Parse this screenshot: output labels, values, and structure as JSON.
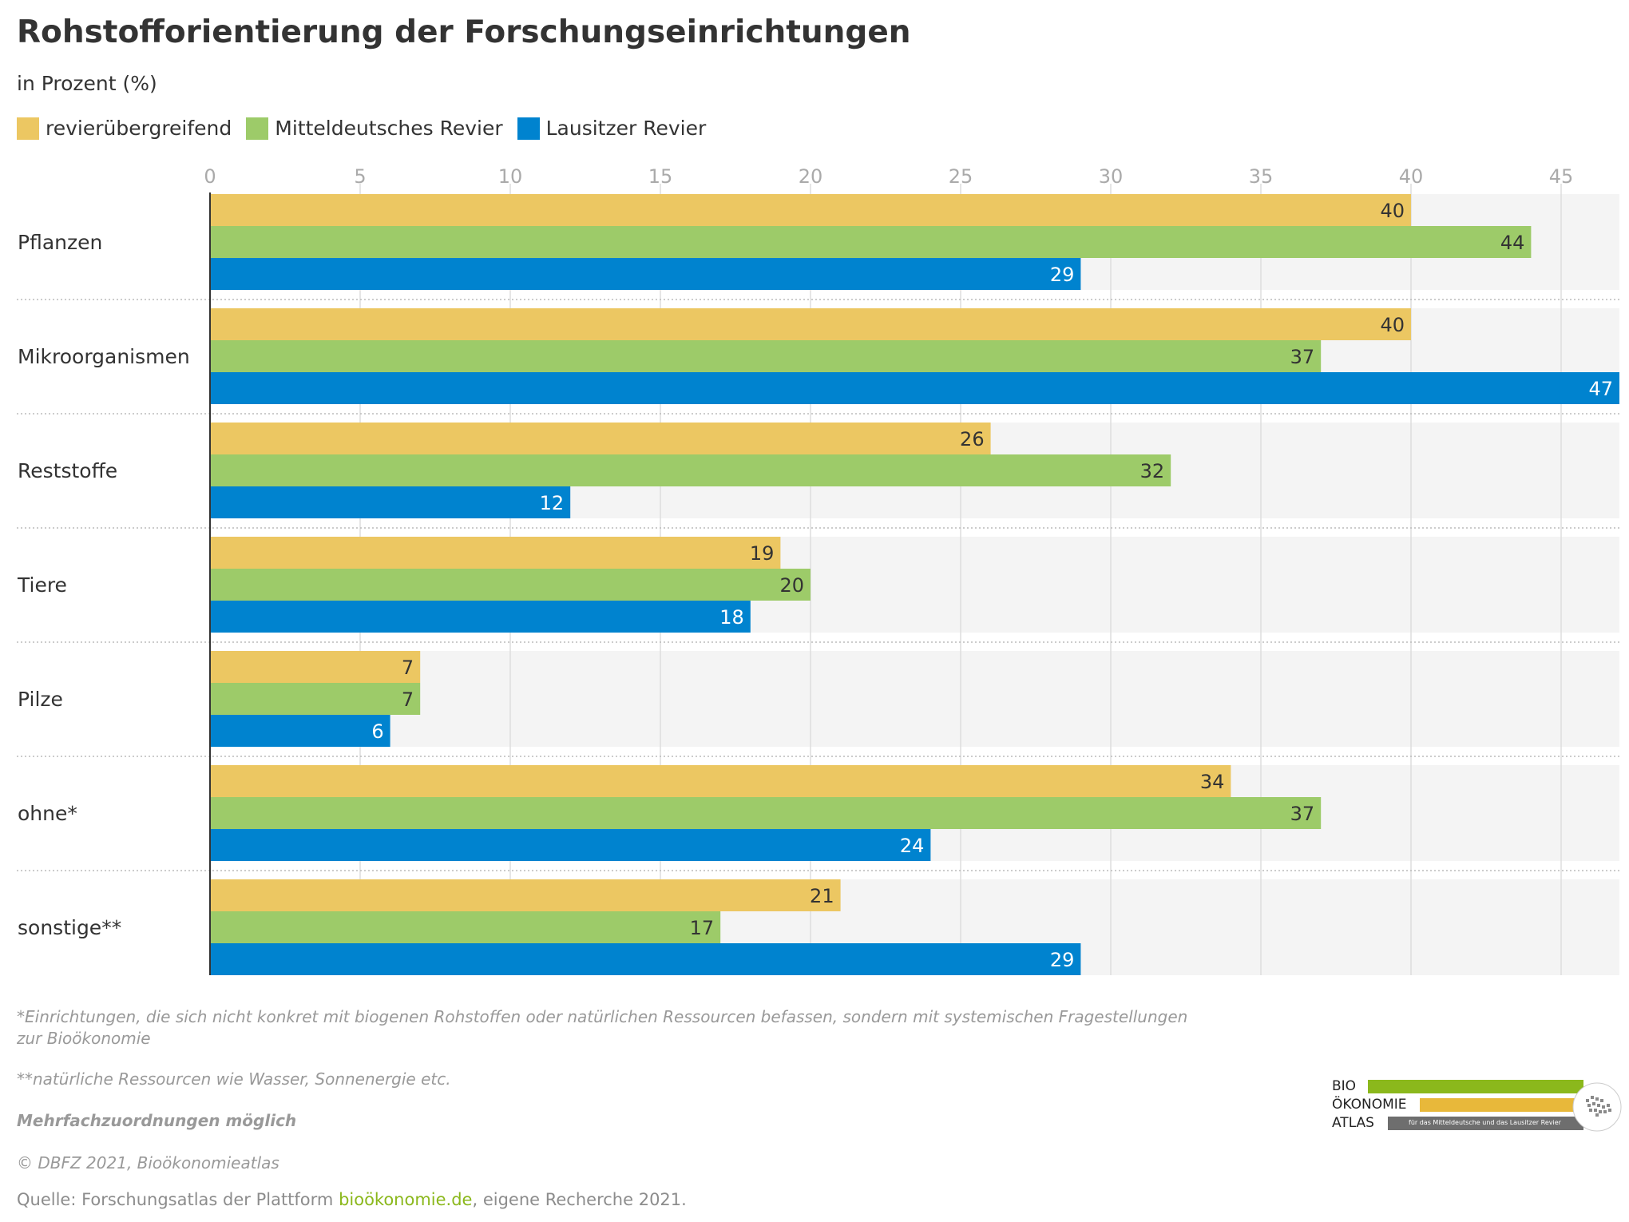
{
  "title": "Rohstofforientierung der Forschungseinrichtungen",
  "subtitle": "in Prozent (%)",
  "colors": {
    "revier": "#ecc762",
    "mittel": "#9dcb69",
    "lausitz": "#0083cf",
    "band": "#f4f4f4",
    "grid": "#dddddd",
    "axis": "#333333"
  },
  "chart_data": {
    "type": "bar",
    "orientation": "horizontal",
    "categories": [
      "Pflanzen",
      "Mikroorganismen",
      "Reststoffe",
      "Tiere",
      "Pilze",
      "ohne*",
      "sonstige**"
    ],
    "series": [
      {
        "name": "revierübergreifend",
        "color": "#ecc762",
        "values": [
          40,
          40,
          26,
          19,
          7,
          34,
          21
        ]
      },
      {
        "name": "Mitteldeutsches Revier",
        "color": "#9dcb69",
        "values": [
          44,
          37,
          32,
          20,
          7,
          37,
          17
        ]
      },
      {
        "name": "Lausitzer Revier",
        "color": "#0083cf",
        "values": [
          29,
          47,
          12,
          18,
          6,
          24,
          29
        ]
      }
    ],
    "xticks": [
      "0",
      "5",
      "10",
      "15",
      "20",
      "25",
      "30",
      "35",
      "40",
      "45"
    ],
    "xlim": [
      0,
      47
    ],
    "grid": true,
    "legend": "top-left"
  },
  "notes": {
    "note1_line1": "*Einrichtungen, die sich nicht konkret mit biogenen Rohstoffen oder natürlichen Ressourcen befassen, sondern mit systemischen Fragestellungen",
    "note1_line2": "zur Bioökonomie",
    "note2": "**natürliche Ressourcen wie Wasser, Sonnenergie etc.",
    "note3": "Mehrfachzuordnungen möglich",
    "copyright": "© DBFZ 2021, Bioökonomieatlas"
  },
  "source": {
    "prefix": "Quelle: Forschungsatlas der Plattform ",
    "link": "bioökonomie.de",
    "suffix": ", eigene Recherche 2021."
  },
  "logo": {
    "line1": "BIO",
    "line2": "ÖKONOMIE",
    "line3": "ATLAS",
    "tagline": "für das Mitteldeutsche und das Lausitzer Revier",
    "colors": [
      "#8bb81c",
      "#e8b83a",
      "#6e6e6e"
    ]
  }
}
